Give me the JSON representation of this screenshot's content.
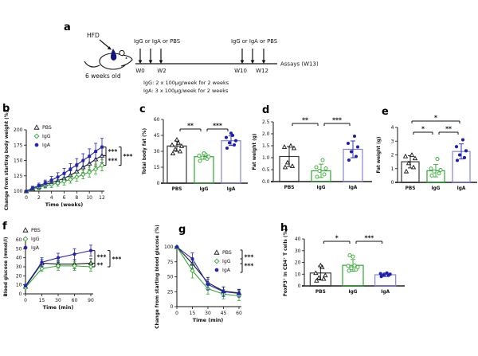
{
  "figure": {
    "background": "#ffffff",
    "colors": {
      "pbs": "#1a1a1a",
      "igg": "#2fa82f",
      "iga": "#2323b8",
      "iga_bar": "#8585d6",
      "drop_blue": "#15157e"
    }
  },
  "panels": {
    "a": {
      "label": "a"
    },
    "b": {
      "label": "b"
    },
    "c": {
      "label": "c"
    },
    "d": {
      "label": "d"
    },
    "e": {
      "label": "e"
    },
    "f": {
      "label": "f"
    },
    "g": {
      "label": "g"
    },
    "h": {
      "label": "h"
    }
  },
  "panel_a": {
    "hfd": "HFD",
    "mouse_age": "6 weeks old",
    "left_injection_label": "IgG or IgA or PBS",
    "right_injection_label": "IgG or IgA or PBS",
    "assays": "Assays (W13)",
    "week_labels": [
      "W0",
      "W2",
      "W10",
      "W12"
    ],
    "dose_line1": "IgG: 2 x 100µg/week for 2 weeks",
    "dose_line2": "IgA: 3 x 100µg/week for 2 weeks"
  },
  "chart_data": [
    {
      "id": "b",
      "type": "line",
      "ylabel": "Change from starting body weight (%)",
      "xlabel": "Time (weeks)",
      "ylim": [
        100,
        200
      ],
      "yticks": {
        "vals": [
          100,
          125,
          150,
          175,
          200
        ],
        "labels": [
          "100",
          "125",
          "150",
          "175",
          "200"
        ]
      },
      "x": [
        0,
        1,
        2,
        3,
        4,
        5,
        6,
        7,
        8,
        9,
        10,
        11,
        12
      ],
      "xticks": {
        "vals": [
          0,
          2,
          4,
          6,
          8,
          10,
          12
        ],
        "labels": [
          "0",
          "2",
          "4",
          "6",
          "8",
          "10",
          "12"
        ]
      },
      "legend_position": "upper-left",
      "series": [
        {
          "name": "PBS",
          "color": "#1a1a1a",
          "marker": "triangle-open",
          "values": [
            100,
            104,
            107,
            111,
            114,
            117,
            121,
            126,
            132,
            139,
            145,
            152,
            158
          ],
          "err": [
            0,
            3,
            4,
            5,
            5,
            6,
            6,
            7,
            8,
            9,
            10,
            11,
            12
          ]
        },
        {
          "name": "IgG",
          "color": "#2fa82f",
          "marker": "diamond-open",
          "values": [
            100,
            104,
            106,
            109,
            111,
            113,
            116,
            119,
            123,
            127,
            131,
            136,
            142
          ],
          "err": [
            0,
            3,
            4,
            4,
            5,
            5,
            6,
            6,
            7,
            7,
            8,
            8,
            9
          ]
        },
        {
          "name": "IgA",
          "color": "#2323b8",
          "marker": "circle-filled",
          "values": [
            100,
            105,
            109,
            113,
            118,
            123,
            129,
            136,
            143,
            150,
            157,
            165,
            172
          ],
          "err": [
            0,
            3,
            4,
            5,
            6,
            7,
            8,
            9,
            10,
            11,
            12,
            13,
            14
          ]
        }
      ],
      "end_sig": [
        {
          "pair": [
            2,
            0
          ],
          "stars": "***"
        },
        {
          "pair": [
            0,
            1
          ],
          "stars": "***"
        },
        {
          "pair": [
            2,
            1
          ],
          "stars": "***",
          "outer": true
        }
      ]
    },
    {
      "id": "c",
      "type": "bar",
      "ylabel": "Total body fat (%)",
      "ylim": [
        0,
        60
      ],
      "yticks": {
        "vals": [
          0,
          15,
          30,
          45,
          60
        ],
        "labels": [
          "0",
          "15",
          "30",
          "45",
          "60"
        ]
      },
      "categories": [
        "PBS",
        "IgG",
        "IgA"
      ],
      "values": [
        35,
        25,
        40
      ],
      "errors": [
        5,
        2.5,
        4.5
      ],
      "bar_colors": [
        "#3a3a3a",
        "#2fa82f",
        "#8585d6"
      ],
      "point_colors": [
        "#111111",
        "#2fa82f",
        "#1d1db5"
      ],
      "point_markers": [
        "triangle-open",
        "circle-open",
        "circle-filled"
      ],
      "points": [
        [
          28,
          30,
          32,
          35,
          36,
          38,
          41
        ],
        [
          21,
          23,
          24,
          25,
          26,
          27,
          28
        ],
        [
          33,
          36,
          38,
          40,
          43,
          45,
          47
        ]
      ],
      "sig": [
        {
          "a": 0,
          "b": 1,
          "stars": "**",
          "dy": 12
        },
        {
          "a": 1,
          "b": 2,
          "stars": "***",
          "dy": 12
        }
      ]
    },
    {
      "id": "d",
      "type": "bar",
      "ylabel": "Fat weight (g)",
      "ylim": [
        0,
        2.5
      ],
      "yticks": {
        "vals": [
          0,
          0.5,
          1,
          1.5,
          2,
          2.5
        ],
        "labels": [
          "0.0",
          "0.5",
          "1.0",
          "1.5",
          "2.0",
          "2.5"
        ]
      },
      "categories": [
        "PBS",
        "IgG",
        "IgA"
      ],
      "values": [
        1.05,
        0.45,
        1.35
      ],
      "errors": [
        0.42,
        0.28,
        0.35
      ],
      "bar_colors": [
        "#3a3a3a",
        "#2fa82f",
        "#8585d6"
      ],
      "point_colors": [
        "#111111",
        "#2fa82f",
        "#1d1db5"
      ],
      "point_markers": [
        "triangle-open",
        "circle-open",
        "circle-filled"
      ],
      "points": [
        [
          0.6,
          0.65,
          0.8,
          1.4,
          1.45,
          1.5
        ],
        [
          0.2,
          0.3,
          0.45,
          0.55,
          0.6,
          0.9
        ],
        [
          0.9,
          1.05,
          1.25,
          1.45,
          1.6,
          1.9
        ]
      ],
      "sig": [
        {
          "a": 0,
          "b": 1,
          "stars": "**",
          "dy": 2
        },
        {
          "a": 1,
          "b": 2,
          "stars": "***",
          "dy": 2
        }
      ]
    },
    {
      "id": "e",
      "type": "bar",
      "ylabel": "Fat weight (g)",
      "ylim": [
        0,
        4
      ],
      "yticks": {
        "vals": [
          0,
          1,
          2,
          3,
          4
        ],
        "labels": [
          "0",
          "1",
          "2",
          "3",
          "4"
        ]
      },
      "categories": [
        "PBS",
        "IgG",
        "IgA"
      ],
      "values": [
        1.5,
        0.85,
        2.25
      ],
      "errors": [
        0.45,
        0.45,
        0.55
      ],
      "bar_colors": [
        "#3a3a3a",
        "#2fa82f",
        "#8585d6"
      ],
      "point_colors": [
        "#111111",
        "#2fa82f",
        "#1d1db5"
      ],
      "point_markers": [
        "triangle-open",
        "circle-open",
        "circle-filled"
      ],
      "points": [
        [
          0.8,
          1.1,
          1.4,
          1.75,
          1.9,
          2.0
        ],
        [
          0.5,
          0.65,
          0.8,
          0.9,
          1.0,
          1.7
        ],
        [
          1.6,
          1.8,
          2.0,
          2.3,
          2.6,
          3.1
        ]
      ],
      "sig": [
        {
          "a": 0,
          "b": 2,
          "stars": "*",
          "dy": -8
        },
        {
          "a": 0,
          "b": 1,
          "stars": "*",
          "dy": 6
        },
        {
          "a": 1,
          "b": 2,
          "stars": "**",
          "dy": 6
        }
      ]
    },
    {
      "id": "f",
      "type": "line",
      "ylabel": "Blood glucose (mmol/l)",
      "xlabel": "Time (min)",
      "ylim": [
        0,
        60
      ],
      "yticks": {
        "vals": [
          0,
          10,
          20,
          30,
          40,
          50,
          60
        ],
        "labels": [
          "0",
          "10",
          "20",
          "30",
          "40",
          "50",
          "60"
        ]
      },
      "x": [
        0,
        1,
        2,
        3,
        4
      ],
      "xticks": {
        "vals": [
          0,
          1,
          2,
          3,
          4
        ],
        "labels": [
          "0",
          "15",
          "30",
          "60",
          "90"
        ]
      },
      "legend_position": "upper-left",
      "series": [
        {
          "name": "PBS",
          "color": "#1a1a1a",
          "marker": "triangle-open",
          "values": [
            8,
            34,
            33,
            33,
            34
          ],
          "err": [
            1.5,
            4,
            4,
            5,
            5
          ]
        },
        {
          "name": "IgG",
          "color": "#2fa82f",
          "marker": "diamond-open",
          "values": [
            7,
            28,
            31,
            31,
            30
          ],
          "err": [
            1.5,
            3,
            5,
            5,
            5
          ]
        },
        {
          "name": "IgA",
          "color": "#2323b8",
          "marker": "circle-filled",
          "values": [
            9,
            35,
            40,
            44,
            48
          ],
          "err": [
            1.5,
            5,
            5,
            6,
            6
          ]
        }
      ],
      "end_sig": [
        {
          "pair": [
            2,
            0
          ],
          "stars": "***"
        },
        {
          "pair": [
            0,
            1
          ],
          "stars": "**"
        },
        {
          "pair": [
            2,
            1
          ],
          "stars": "***",
          "outer": true
        }
      ]
    },
    {
      "id": "g",
      "type": "line",
      "ylabel": "Change from starting blood glucose (%)",
      "xlabel": "Time (min)",
      "ylim": [
        0,
        100
      ],
      "yticks": {
        "vals": [
          0,
          25,
          50,
          75,
          100
        ],
        "labels": [
          "0",
          "25",
          "50",
          "75",
          "100"
        ]
      },
      "x": [
        0,
        15,
        30,
        45,
        60
      ],
      "xticks": {
        "vals": [
          0,
          15,
          30,
          45,
          60
        ],
        "labels": [
          "0",
          "15",
          "30",
          "45",
          "60"
        ]
      },
      "legend_position": "right",
      "series": [
        {
          "name": "PBS",
          "color": "#1a1a1a",
          "marker": "triangle-open",
          "values": [
            100,
            72,
            40,
            26,
            23
          ],
          "err": [
            0,
            8,
            9,
            7,
            6
          ]
        },
        {
          "name": "IgG",
          "color": "#2fa82f",
          "marker": "diamond-open",
          "values": [
            100,
            60,
            30,
            21,
            18
          ],
          "err": [
            0,
            12,
            9,
            8,
            8
          ]
        },
        {
          "name": "IgA",
          "color": "#2323b8",
          "marker": "circle-filled",
          "values": [
            100,
            80,
            37,
            25,
            22
          ],
          "err": [
            0,
            10,
            9,
            8,
            6
          ]
        }
      ],
      "legend_sig": [
        {
          "rows": [
            0,
            1
          ],
          "stars": "***"
        },
        {
          "rows": [
            1,
            2
          ],
          "stars": "***"
        }
      ]
    },
    {
      "id": "h",
      "type": "bar",
      "ylabel": "FoxP3⁺ in CD4⁺ T cells (%)",
      "ylim": [
        0,
        40
      ],
      "yticks": {
        "vals": [
          0,
          10,
          20,
          30,
          40
        ],
        "labels": [
          "0",
          "10",
          "20",
          "30",
          "40"
        ]
      },
      "categories": [
        "PBS",
        "IgG",
        "IgA"
      ],
      "values": [
        11,
        17.5,
        9.5
      ],
      "errors": [
        6,
        5,
        1.5
      ],
      "bar_colors": [
        "#3a3a3a",
        "#2fa82f",
        "#8585d6"
      ],
      "point_colors": [
        "#111111",
        "#2fa82f",
        "#1d1db5"
      ],
      "point_markers": [
        "triangle-open",
        "circle-open",
        "circle-filled"
      ],
      "points": [
        [
          4.5,
          6,
          7,
          9,
          11,
          16,
          17.5
        ],
        [
          13,
          14,
          15,
          16,
          17,
          17.5,
          25,
          26
        ],
        [
          8,
          9,
          9.5,
          10,
          10.5,
          11
        ]
      ],
      "sig": [
        {
          "a": 0,
          "b": 1,
          "stars": "*",
          "dy": 3
        },
        {
          "a": 1,
          "b": 2,
          "stars": "***",
          "dy": 3
        }
      ]
    }
  ]
}
